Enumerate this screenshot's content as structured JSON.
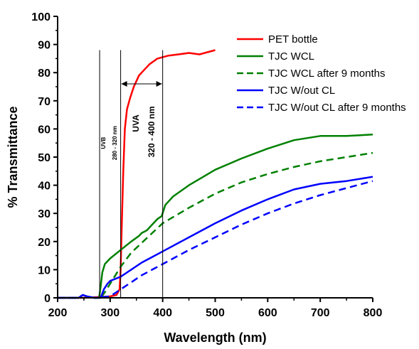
{
  "chart_data": {
    "type": "line",
    "xlabel": "Wavelength (nm)",
    "ylabel": "% Transmittance",
    "xlim": [
      200,
      800
    ],
    "ylim": [
      0,
      100
    ],
    "xticks": [
      200,
      300,
      400,
      500,
      600,
      700,
      800
    ],
    "yticks": [
      0,
      10,
      20,
      30,
      40,
      50,
      60,
      70,
      80,
      90,
      100
    ],
    "grid": false,
    "legend_position": "top-right",
    "series": [
      {
        "name": "PET bottle",
        "color": "#ff0000",
        "dash": "solid",
        "points": [
          [
            200,
            0
          ],
          [
            250,
            0
          ],
          [
            300,
            0.5
          ],
          [
            312,
            1
          ],
          [
            318,
            3
          ],
          [
            320,
            10
          ],
          [
            322,
            25
          ],
          [
            325,
            45
          ],
          [
            328,
            60
          ],
          [
            332,
            67
          ],
          [
            338,
            71
          ],
          [
            345,
            75
          ],
          [
            355,
            79
          ],
          [
            365,
            81
          ],
          [
            375,
            83
          ],
          [
            390,
            85
          ],
          [
            410,
            86
          ],
          [
            430,
            86.5
          ],
          [
            450,
            87
          ],
          [
            470,
            86.5
          ],
          [
            490,
            87.5
          ],
          [
            500,
            88
          ]
        ]
      },
      {
        "name": "TJC WCL",
        "color": "#008000",
        "dash": "solid",
        "points": [
          [
            200,
            0
          ],
          [
            240,
            0
          ],
          [
            248,
            1
          ],
          [
            256,
            0.5
          ],
          [
            270,
            0
          ],
          [
            279,
            0
          ],
          [
            282,
            4
          ],
          [
            285,
            9
          ],
          [
            290,
            12
          ],
          [
            300,
            14
          ],
          [
            320,
            17
          ],
          [
            340,
            20
          ],
          [
            355,
            22
          ],
          [
            360,
            23
          ],
          [
            370,
            24
          ],
          [
            380,
            26
          ],
          [
            390,
            28
          ],
          [
            398,
            29
          ],
          [
            405,
            33
          ],
          [
            420,
            36
          ],
          [
            450,
            40
          ],
          [
            500,
            45.5
          ],
          [
            550,
            49.5
          ],
          [
            600,
            53
          ],
          [
            650,
            56
          ],
          [
            700,
            57.5
          ],
          [
            750,
            57.5
          ],
          [
            800,
            58
          ]
        ]
      },
      {
        "name": "TJC WCL after 9 months",
        "color": "#008000",
        "dash": "dashed",
        "points": [
          [
            200,
            0
          ],
          [
            240,
            0
          ],
          [
            248,
            1
          ],
          [
            256,
            0.5
          ],
          [
            270,
            0
          ],
          [
            282,
            0
          ],
          [
            290,
            2
          ],
          [
            300,
            5
          ],
          [
            320,
            11
          ],
          [
            340,
            16
          ],
          [
            360,
            19.5
          ],
          [
            380,
            23
          ],
          [
            400,
            26.5
          ],
          [
            450,
            32
          ],
          [
            500,
            37
          ],
          [
            550,
            41
          ],
          [
            600,
            44
          ],
          [
            650,
            46.5
          ],
          [
            700,
            48.5
          ],
          [
            750,
            50
          ],
          [
            800,
            51.5
          ]
        ]
      },
      {
        "name": "TJC W/out CL",
        "color": "#0000ff",
        "dash": "solid",
        "points": [
          [
            200,
            0
          ],
          [
            240,
            0
          ],
          [
            248,
            1
          ],
          [
            256,
            0.5
          ],
          [
            270,
            0
          ],
          [
            282,
            0
          ],
          [
            288,
            3
          ],
          [
            295,
            5
          ],
          [
            300,
            6
          ],
          [
            320,
            7.5
          ],
          [
            340,
            10
          ],
          [
            360,
            12.5
          ],
          [
            380,
            14.5
          ],
          [
            400,
            16.5
          ],
          [
            450,
            21.5
          ],
          [
            500,
            26.5
          ],
          [
            550,
            31
          ],
          [
            600,
            35
          ],
          [
            650,
            38.5
          ],
          [
            700,
            40.5
          ],
          [
            750,
            41.5
          ],
          [
            800,
            43
          ]
        ]
      },
      {
        "name": "TJC W/out CL after 9 months",
        "color": "#0000ff",
        "dash": "dashed",
        "points": [
          [
            200,
            0
          ],
          [
            240,
            0
          ],
          [
            248,
            1
          ],
          [
            256,
            0.5
          ],
          [
            270,
            0
          ],
          [
            300,
            0.5
          ],
          [
            320,
            3
          ],
          [
            340,
            5.5
          ],
          [
            360,
            8
          ],
          [
            380,
            10
          ],
          [
            400,
            12
          ],
          [
            450,
            17
          ],
          [
            500,
            21.5
          ],
          [
            550,
            26
          ],
          [
            600,
            30
          ],
          [
            650,
            33.5
          ],
          [
            700,
            36.5
          ],
          [
            750,
            39
          ],
          [
            800,
            41.5
          ]
        ]
      }
    ],
    "vertical_lines": [
      280,
      320,
      400
    ],
    "annotations": {
      "uvb": "UVB",
      "uvb_range": "280 - 320 nm",
      "uva": "UVA",
      "uva_range": "320 - 400 nm"
    }
  }
}
